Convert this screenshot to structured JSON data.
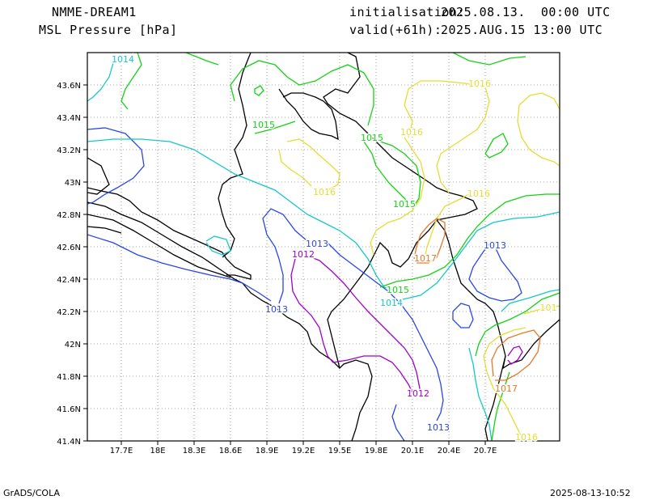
{
  "header": {
    "model": "NMME-DREAM1",
    "field": "MSL Pressure [hPa]",
    "init_label": "initialisation:",
    "init_value": "2025.08.13.  00:00 UTC",
    "valid_label": "valid(+61h):",
    "valid_value": "2025.AUG.15 13:00 UTC"
  },
  "footer": {
    "software": "GrADS/COLA",
    "timestamp": "2025-08-13-10:52"
  },
  "map": {
    "lon_ticks": [
      "17.7E",
      "18E",
      "18.3E",
      "18.6E",
      "18.9E",
      "19.2E",
      "19.5E",
      "19.8E",
      "20.1E",
      "20.4E",
      "20.7E"
    ],
    "lat_ticks": [
      "43.6N",
      "43.4N",
      "43.2N",
      "43N",
      "42.8N",
      "42.6N",
      "42.4N",
      "42.2N",
      "42N",
      "41.8N",
      "41.6N",
      "41.4N"
    ],
    "grid": true,
    "colors": {
      "c1012": "#a000c8",
      "c1013": "#2846e6",
      "c1014": "#14c8c8",
      "c1015": "#14d214",
      "c1016": "#e6dc32",
      "c1017": "#e67828",
      "c1018": "#e60082",
      "coast": "#000000",
      "grid": "#888888"
    },
    "contour_labels": [
      {
        "text": "1014",
        "level": "c1014"
      },
      {
        "text": "1015",
        "level": "c1015"
      },
      {
        "text": "1015",
        "level": "c1015"
      },
      {
        "text": "1015",
        "level": "c1015"
      },
      {
        "text": "1016",
        "level": "c1016"
      },
      {
        "text": "1016",
        "level": "c1016"
      },
      {
        "text": "1016",
        "level": "c1016"
      },
      {
        "text": "1016",
        "level": "c1016"
      },
      {
        "text": "1013",
        "level": "c1013"
      },
      {
        "text": "1012",
        "level": "c1012"
      },
      {
        "text": "1013",
        "level": "c1013"
      },
      {
        "text": "1017",
        "level": "c1017"
      },
      {
        "text": "1013",
        "level": "c1013"
      },
      {
        "text": "1015",
        "level": "c1015"
      },
      {
        "text": "1014",
        "level": "c1014"
      },
      {
        "text": "101",
        "level": "c1016"
      },
      {
        "text": "1017",
        "level": "c1017"
      },
      {
        "text": "1012",
        "level": "c1012"
      },
      {
        "text": "1013",
        "level": "c1013"
      },
      {
        "text": "1016",
        "level": "c1016"
      }
    ]
  }
}
